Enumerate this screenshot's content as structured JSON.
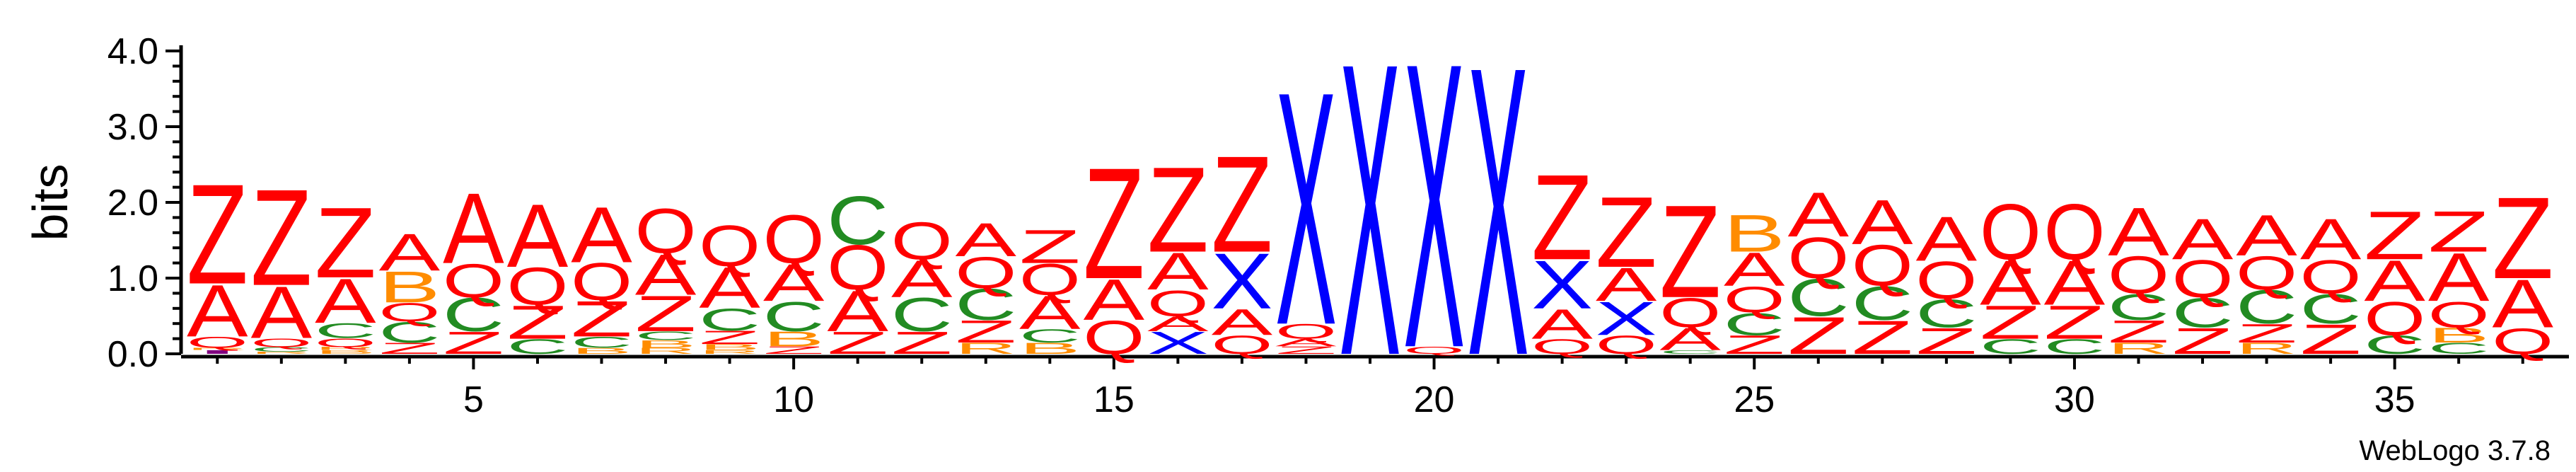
{
  "chart_data": {
    "type": "sequence-logo",
    "ylabel": "bits",
    "ylim": [
      0,
      4.0
    ],
    "y_ticks": [
      "0.0",
      "1.0",
      "2.0",
      "3.0",
      "4.0"
    ],
    "x_ticks": [
      "5",
      "10",
      "15",
      "20",
      "25",
      "30",
      "35"
    ],
    "footer": "WebLogo 3.7.8",
    "colors": {
      "Z": "#ff0000",
      "A": "#ff0000",
      "Q": "#ff0000",
      "X": "#0000ff",
      "C": "#228b22",
      "B": "#ff8c00",
      "R": "#ff8c00",
      "I": "#800080",
      "G": "#228b22"
    },
    "positions": [
      {
        "pos": 1,
        "stack": [
          [
            "I",
            0.05
          ],
          [
            "R",
            0.03
          ],
          [
            "Q",
            0.15
          ],
          [
            "A",
            0.7
          ],
          [
            "Z",
            1.35
          ]
        ]
      },
      {
        "pos": 2,
        "stack": [
          [
            "R",
            0.03
          ],
          [
            "C",
            0.06
          ],
          [
            "Q",
            0.12
          ],
          [
            "A",
            0.7
          ],
          [
            "Z",
            1.3
          ]
        ]
      },
      {
        "pos": 3,
        "stack": [
          [
            "B",
            0.05
          ],
          [
            "R",
            0.04
          ],
          [
            "Q",
            0.12
          ],
          [
            "C",
            0.2
          ],
          [
            "A",
            0.6
          ],
          [
            "Z",
            0.95
          ]
        ]
      },
      {
        "pos": 4,
        "stack": [
          [
            "Z",
            0.15
          ],
          [
            "C",
            0.28
          ],
          [
            "Q",
            0.25
          ],
          [
            "B",
            0.42
          ],
          [
            "A",
            0.5
          ]
        ]
      },
      {
        "pos": 5,
        "stack": [
          [
            "Z",
            0.3
          ],
          [
            "C",
            0.45
          ],
          [
            "Q",
            0.45
          ],
          [
            "A",
            0.95
          ]
        ]
      },
      {
        "pos": 6,
        "stack": [
          [
            "C",
            0.2
          ],
          [
            "Z",
            0.45
          ],
          [
            "Q",
            0.5
          ],
          [
            "A",
            0.85
          ]
        ]
      },
      {
        "pos": 7,
        "stack": [
          [
            "B",
            0.08
          ],
          [
            "C",
            0.15
          ],
          [
            "Z",
            0.48
          ],
          [
            "Q",
            0.5
          ],
          [
            "A",
            0.75
          ]
        ]
      },
      {
        "pos": 8,
        "stack": [
          [
            "R",
            0.08
          ],
          [
            "B",
            0.1
          ],
          [
            "C",
            0.12
          ],
          [
            "Z",
            0.48
          ],
          [
            "A",
            0.55
          ],
          [
            "Q",
            0.6
          ]
        ]
      },
      {
        "pos": 9,
        "stack": [
          [
            "R",
            0.05
          ],
          [
            "B",
            0.08
          ],
          [
            "Z",
            0.18
          ],
          [
            "C",
            0.3
          ],
          [
            "A",
            0.55
          ],
          [
            "Q",
            0.55
          ]
        ]
      },
      {
        "pos": 10,
        "stack": [
          [
            "Z",
            0.1
          ],
          [
            "B",
            0.2
          ],
          [
            "C",
            0.4
          ],
          [
            "A",
            0.5
          ],
          [
            "Q",
            0.65
          ]
        ]
      },
      {
        "pos": 11,
        "stack": [
          [
            "Z",
            0.3
          ],
          [
            "A",
            0.55
          ],
          [
            "Q",
            0.6
          ],
          [
            "C",
            0.65
          ]
        ]
      },
      {
        "pos": 12,
        "stack": [
          [
            "Z",
            0.3
          ],
          [
            "C",
            0.45
          ],
          [
            "A",
            0.5
          ],
          [
            "Q",
            0.5
          ]
        ]
      },
      {
        "pos": 13,
        "stack": [
          [
            "R",
            0.15
          ],
          [
            "Z",
            0.3
          ],
          [
            "C",
            0.42
          ],
          [
            "Q",
            0.42
          ],
          [
            "A",
            0.45
          ]
        ]
      },
      {
        "pos": 14,
        "stack": [
          [
            "B",
            0.15
          ],
          [
            "C",
            0.18
          ],
          [
            "A",
            0.45
          ],
          [
            "Q",
            0.42
          ],
          [
            "Z",
            0.45
          ]
        ]
      },
      {
        "pos": 15,
        "stack": [
          [
            "Q",
            0.45
          ],
          [
            "A",
            0.55
          ],
          [
            "Z",
            1.5
          ]
        ]
      },
      {
        "pos": 16,
        "stack": [
          [
            "X",
            0.3
          ],
          [
            "A",
            0.2
          ],
          [
            "Q",
            0.35
          ],
          [
            "A",
            0.5
          ],
          [
            "Z",
            1.15
          ]
        ]
      },
      {
        "pos": 17,
        "stack": [
          [
            "Q",
            0.25
          ],
          [
            "A",
            0.35
          ],
          [
            "X",
            0.75
          ],
          [
            "Z",
            1.3
          ]
        ]
      },
      {
        "pos": 18,
        "stack": [
          [
            "Z",
            0.1
          ],
          [
            "A",
            0.1
          ],
          [
            "Q",
            0.2
          ],
          [
            "X",
            3.15
          ]
        ]
      },
      {
        "pos": 19,
        "stack": [
          [
            "X",
            3.95
          ]
        ]
      },
      {
        "pos": 20,
        "stack": [
          [
            "Q",
            0.1
          ],
          [
            "X",
            3.85
          ]
        ]
      },
      {
        "pos": 21,
        "stack": [
          [
            "X",
            3.9
          ]
        ]
      },
      {
        "pos": 22,
        "stack": [
          [
            "Q",
            0.2
          ],
          [
            "A",
            0.4
          ],
          [
            "X",
            0.65
          ],
          [
            "Z",
            1.15
          ]
        ]
      },
      {
        "pos": 23,
        "stack": [
          [
            "Q",
            0.25
          ],
          [
            "X",
            0.45
          ],
          [
            "A",
            0.45
          ],
          [
            "Z",
            0.95
          ]
        ]
      },
      {
        "pos": 24,
        "stack": [
          [
            "C",
            0.05
          ],
          [
            "A",
            0.3
          ],
          [
            "Q",
            0.4
          ],
          [
            "Z",
            1.25
          ]
        ]
      },
      {
        "pos": 25,
        "stack": [
          [
            "Z",
            0.25
          ],
          [
            "C",
            0.3
          ],
          [
            "Q",
            0.35
          ],
          [
            "A",
            0.45
          ],
          [
            "B",
            0.5
          ]
        ]
      },
      {
        "pos": 26,
        "stack": [
          [
            "Z",
            0.5
          ],
          [
            "C",
            0.5
          ],
          [
            "Q",
            0.55
          ],
          [
            "A",
            0.6
          ]
        ]
      },
      {
        "pos": 27,
        "stack": [
          [
            "Z",
            0.45
          ],
          [
            "C",
            0.45
          ],
          [
            "Q",
            0.55
          ],
          [
            "A",
            0.6
          ]
        ]
      },
      {
        "pos": 28,
        "stack": [
          [
            "Z",
            0.35
          ],
          [
            "C",
            0.38
          ],
          [
            "Q",
            0.5
          ],
          [
            "A",
            0.6
          ]
        ]
      },
      {
        "pos": 29,
        "stack": [
          [
            "C",
            0.2
          ],
          [
            "Z",
            0.45
          ],
          [
            "A",
            0.6
          ],
          [
            "Q",
            0.75
          ]
        ]
      },
      {
        "pos": 30,
        "stack": [
          [
            "C",
            0.2
          ],
          [
            "Z",
            0.45
          ],
          [
            "A",
            0.6
          ],
          [
            "Q",
            0.75
          ]
        ]
      },
      {
        "pos": 31,
        "stack": [
          [
            "R",
            0.15
          ],
          [
            "Z",
            0.3
          ],
          [
            "C",
            0.35
          ],
          [
            "Q",
            0.5
          ],
          [
            "A",
            0.65
          ]
        ]
      },
      {
        "pos": 32,
        "stack": [
          [
            "Z",
            0.35
          ],
          [
            "C",
            0.4
          ],
          [
            "Q",
            0.5
          ],
          [
            "A",
            0.55
          ]
        ]
      },
      {
        "pos": 33,
        "stack": [
          [
            "R",
            0.15
          ],
          [
            "Z",
            0.25
          ],
          [
            "C",
            0.45
          ],
          [
            "Q",
            0.45
          ],
          [
            "A",
            0.55
          ]
        ]
      },
      {
        "pos": 34,
        "stack": [
          [
            "Z",
            0.4
          ],
          [
            "C",
            0.4
          ],
          [
            "Q",
            0.45
          ],
          [
            "A",
            0.55
          ]
        ]
      },
      {
        "pos": 35,
        "stack": [
          [
            "C",
            0.25
          ],
          [
            "Q",
            0.45
          ],
          [
            "A",
            0.55
          ],
          [
            "Z",
            0.65
          ]
        ]
      },
      {
        "pos": 36,
        "stack": [
          [
            "C",
            0.15
          ],
          [
            "B",
            0.2
          ],
          [
            "Q",
            0.35
          ],
          [
            "A",
            0.65
          ],
          [
            "Z",
            0.55
          ]
        ]
      },
      {
        "pos": 37,
        "stack": [
          [
            "Q",
            0.35
          ],
          [
            "A",
            0.65
          ],
          [
            "Z",
            1.1
          ]
        ]
      }
    ]
  }
}
